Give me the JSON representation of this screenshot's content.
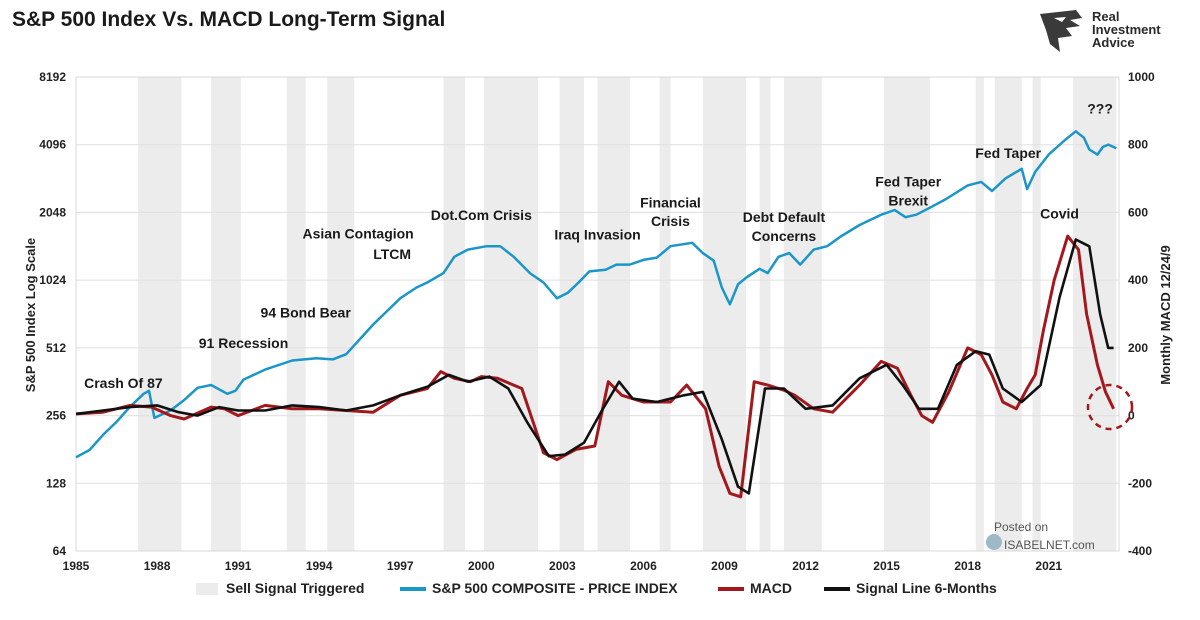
{
  "title": "S&P 500 Index Vs. MACD Long-Term Signal",
  "logo": {
    "line1": "Real",
    "line2": "Investment",
    "line3": "Advice",
    "icon": "eagle-head-icon"
  },
  "watermark": {
    "posted": "Posted on",
    "site": "ISABELNET.com"
  },
  "colors": {
    "sp500": "#1a96c8",
    "macd": "#a3181c",
    "signal": "#111111",
    "shade": "#ececec",
    "grid": "#e0e0e0"
  },
  "chart_data": {
    "type": "line",
    "title": "S&P 500 Index Vs. MACD Long-Term Signal",
    "ylabel": "S&P 500 Index Log Scale",
    "y2label": "Monthly MACD 12/24/9",
    "xlim": [
      1985,
      2023.6
    ],
    "ylim_log": [
      64,
      8192
    ],
    "y2lim": [
      -400,
      1000
    ],
    "x_ticks": [
      "1985",
      "1988",
      "1991",
      "1994",
      "1997",
      "2000",
      "2003",
      "2006",
      "2009",
      "2012",
      "2015",
      "2018",
      "2021"
    ],
    "y_ticks": [
      "64",
      "128",
      "256",
      "512",
      "1024",
      "2048",
      "4096",
      "8192"
    ],
    "y2_ticks": [
      "-400",
      "-200",
      "0",
      "200",
      "400",
      "600",
      "800",
      "1000"
    ],
    "sell_signals": [
      [
        1987.3,
        1988.9
      ],
      [
        1990.0,
        1991.1
      ],
      [
        1992.8,
        1993.5
      ],
      [
        1994.3,
        1995.3
      ],
      [
        1998.6,
        1999.4
      ],
      [
        2000.1,
        2002.1
      ],
      [
        2002.9,
        2003.8
      ],
      [
        2004.3,
        2005.5
      ],
      [
        2006.6,
        2007.0
      ],
      [
        2008.2,
        2009.8
      ],
      [
        2010.3,
        2010.7
      ],
      [
        2011.2,
        2012.6
      ],
      [
        2014.9,
        2016.6
      ],
      [
        2018.3,
        2018.6
      ],
      [
        2019.0,
        2020.0
      ],
      [
        2020.4,
        2020.7
      ],
      [
        2021.9,
        2023.5
      ]
    ],
    "series": [
      {
        "name": "S&P 500 COMPOSITE - PRICE INDEX",
        "axis": "left",
        "x": [
          1985,
          1985.5,
          1986,
          1986.5,
          1987,
          1987.5,
          1987.7,
          1987.9,
          1988.5,
          1989,
          1989.5,
          1990,
          1990.6,
          1990.9,
          1991.2,
          1992,
          1993,
          1993.9,
          1994.5,
          1995,
          1996,
          1997,
          1997.6,
          1998,
          1998.6,
          1999,
          1999.5,
          2000.2,
          2000.7,
          2001.2,
          2001.8,
          2002.3,
          2002.8,
          2003.2,
          2003.6,
          2004,
          2004.6,
          2005,
          2005.5,
          2006,
          2006.5,
          2007,
          2007.8,
          2008.2,
          2008.6,
          2008.9,
          2009.2,
          2009.5,
          2009.8,
          2010.3,
          2010.6,
          2011,
          2011.4,
          2011.8,
          2012.3,
          2012.8,
          2013.3,
          2014,
          2014.8,
          2015.3,
          2015.7,
          2016.1,
          2016.6,
          2017.2,
          2018,
          2018.5,
          2018.9,
          2019.4,
          2020,
          2020.2,
          2020.5,
          2021,
          2021.6,
          2022,
          2022.3,
          2022.5,
          2022.8,
          2023,
          2023.2,
          2023.5
        ],
        "values": [
          167,
          180,
          210,
          240,
          280,
          320,
          330,
          250,
          270,
          300,
          340,
          350,
          320,
          330,
          370,
          410,
          450,
          460,
          455,
          480,
          650,
          850,
          950,
          1000,
          1100,
          1300,
          1400,
          1450,
          1450,
          1300,
          1100,
          1000,
          850,
          900,
          1000,
          1120,
          1140,
          1200,
          1200,
          1260,
          1290,
          1450,
          1500,
          1350,
          1250,
          950,
          800,
          980,
          1050,
          1150,
          1100,
          1300,
          1350,
          1200,
          1400,
          1450,
          1600,
          1800,
          2000,
          2100,
          1950,
          2000,
          2150,
          2350,
          2700,
          2800,
          2550,
          2900,
          3200,
          2600,
          3100,
          3700,
          4300,
          4700,
          4400,
          3900,
          3700,
          4000,
          4100,
          3950
        ]
      },
      {
        "name": "MACD",
        "axis": "right",
        "x": [
          1985,
          1986,
          1987,
          1987.8,
          1988.5,
          1989,
          1990,
          1990.5,
          1991,
          1992,
          1993,
          1994,
          1995,
          1996,
          1997,
          1998,
          1998.5,
          1999,
          1999.6,
          2000,
          2000.6,
          2001.5,
          2002.3,
          2002.8,
          2003.5,
          2004.2,
          2004.7,
          2005.2,
          2006,
          2007,
          2007.6,
          2008.3,
          2008.8,
          2009.2,
          2009.6,
          2010.1,
          2010.6,
          2011.2,
          2011.6,
          2012.3,
          2013,
          2014,
          2014.8,
          2015.4,
          2015.9,
          2016.3,
          2016.7,
          2017.3,
          2018,
          2018.5,
          2018.9,
          2019.3,
          2019.8,
          2020.2,
          2020.5,
          2020.8,
          2021.2,
          2021.7,
          2022.1,
          2022.4,
          2022.8,
          2023.1,
          2023.4
        ],
        "values": [
          5,
          10,
          30,
          25,
          0,
          -10,
          25,
          20,
          0,
          30,
          20,
          20,
          15,
          10,
          60,
          80,
          130,
          110,
          100,
          115,
          110,
          80,
          -110,
          -130,
          -100,
          -90,
          100,
          60,
          40,
          40,
          90,
          20,
          -150,
          -230,
          -240,
          100,
          90,
          75,
          60,
          20,
          10,
          90,
          160,
          140,
          60,
          0,
          -20,
          70,
          200,
          180,
          120,
          40,
          20,
          80,
          120,
          250,
          400,
          530,
          490,
          300,
          150,
          70,
          20
        ]
      },
      {
        "name": "Signal Line 6-Months",
        "axis": "right",
        "x": [
          1985,
          1986,
          1987,
          1988,
          1988.8,
          1989.5,
          1990.3,
          1991,
          1992,
          1993,
          1994,
          1995,
          1996,
          1997,
          1998,
          1998.8,
          1999.5,
          2000.3,
          2001,
          2001.7,
          2002.5,
          2003.1,
          2003.8,
          2004.5,
          2005.1,
          2005.6,
          2006.5,
          2007.5,
          2008.2,
          2008.9,
          2009.5,
          2009.9,
          2010.5,
          2011.2,
          2012,
          2013,
          2014,
          2015,
          2015.6,
          2016.2,
          2016.9,
          2017.6,
          2018.3,
          2018.8,
          2019.3,
          2020,
          2020.7,
          2021.4,
          2022,
          2022.5,
          2022.9,
          2023.2,
          2023.4
        ],
        "values": [
          5,
          15,
          25,
          30,
          10,
          0,
          25,
          15,
          15,
          30,
          25,
          15,
          30,
          60,
          85,
          120,
          100,
          115,
          80,
          -20,
          -120,
          -115,
          -80,
          20,
          100,
          50,
          40,
          60,
          70,
          -70,
          -210,
          -230,
          80,
          80,
          20,
          30,
          110,
          150,
          90,
          20,
          20,
          150,
          190,
          180,
          80,
          40,
          90,
          350,
          520,
          500,
          300,
          200,
          200
        ]
      }
    ],
    "legend": [
      "Sell Signal Triggered",
      "S&P 500 COMPOSITE - PRICE INDEX",
      "MACD",
      "Signal Line 6-Months"
    ],
    "annotations": [
      {
        "text": "Crash Of 87",
        "x": 1985.3,
        "y": 340,
        "anchor": "start"
      },
      {
        "text": "91 Recession",
        "x": 1991.2,
        "y": 510,
        "anchor": "middle"
      },
      {
        "text": "94 Bond Bear",
        "x": 1993.5,
        "y": 700,
        "anchor": "middle"
      },
      {
        "text": "Asian Contagion",
        "x": 1997.5,
        "y": 1570,
        "anchor": "end"
      },
      {
        "text": "LTCM",
        "x": 1997.4,
        "y": 1270,
        "anchor": "end"
      },
      {
        "text": "Dot.Com Crisis",
        "x": 2000.0,
        "y": 1900,
        "anchor": "middle"
      },
      {
        "text": "Iraq Invasion",
        "x": 2004.3,
        "y": 1550,
        "anchor": "middle"
      },
      {
        "text": "Financial",
        "x": 2007.0,
        "y": 2150,
        "anchor": "middle"
      },
      {
        "text": "Crisis",
        "x": 2007.0,
        "y": 1780,
        "anchor": "middle"
      },
      {
        "text": "Debt Default",
        "x": 2011.2,
        "y": 1860,
        "anchor": "middle"
      },
      {
        "text": "Concerns",
        "x": 2011.2,
        "y": 1530,
        "anchor": "middle"
      },
      {
        "text": "Fed Taper",
        "x": 2015.8,
        "y": 2670,
        "anchor": "middle"
      },
      {
        "text": "Brexit",
        "x": 2015.8,
        "y": 2200,
        "anchor": "middle"
      },
      {
        "text": "Fed Taper",
        "x": 2019.5,
        "y": 3570,
        "anchor": "middle"
      },
      {
        "text": "Covid",
        "x": 2021.4,
        "y": 1920,
        "anchor": "middle"
      },
      {
        "text": "???",
        "x": 2022.9,
        "y": 5650,
        "anchor": "middle"
      }
    ]
  }
}
